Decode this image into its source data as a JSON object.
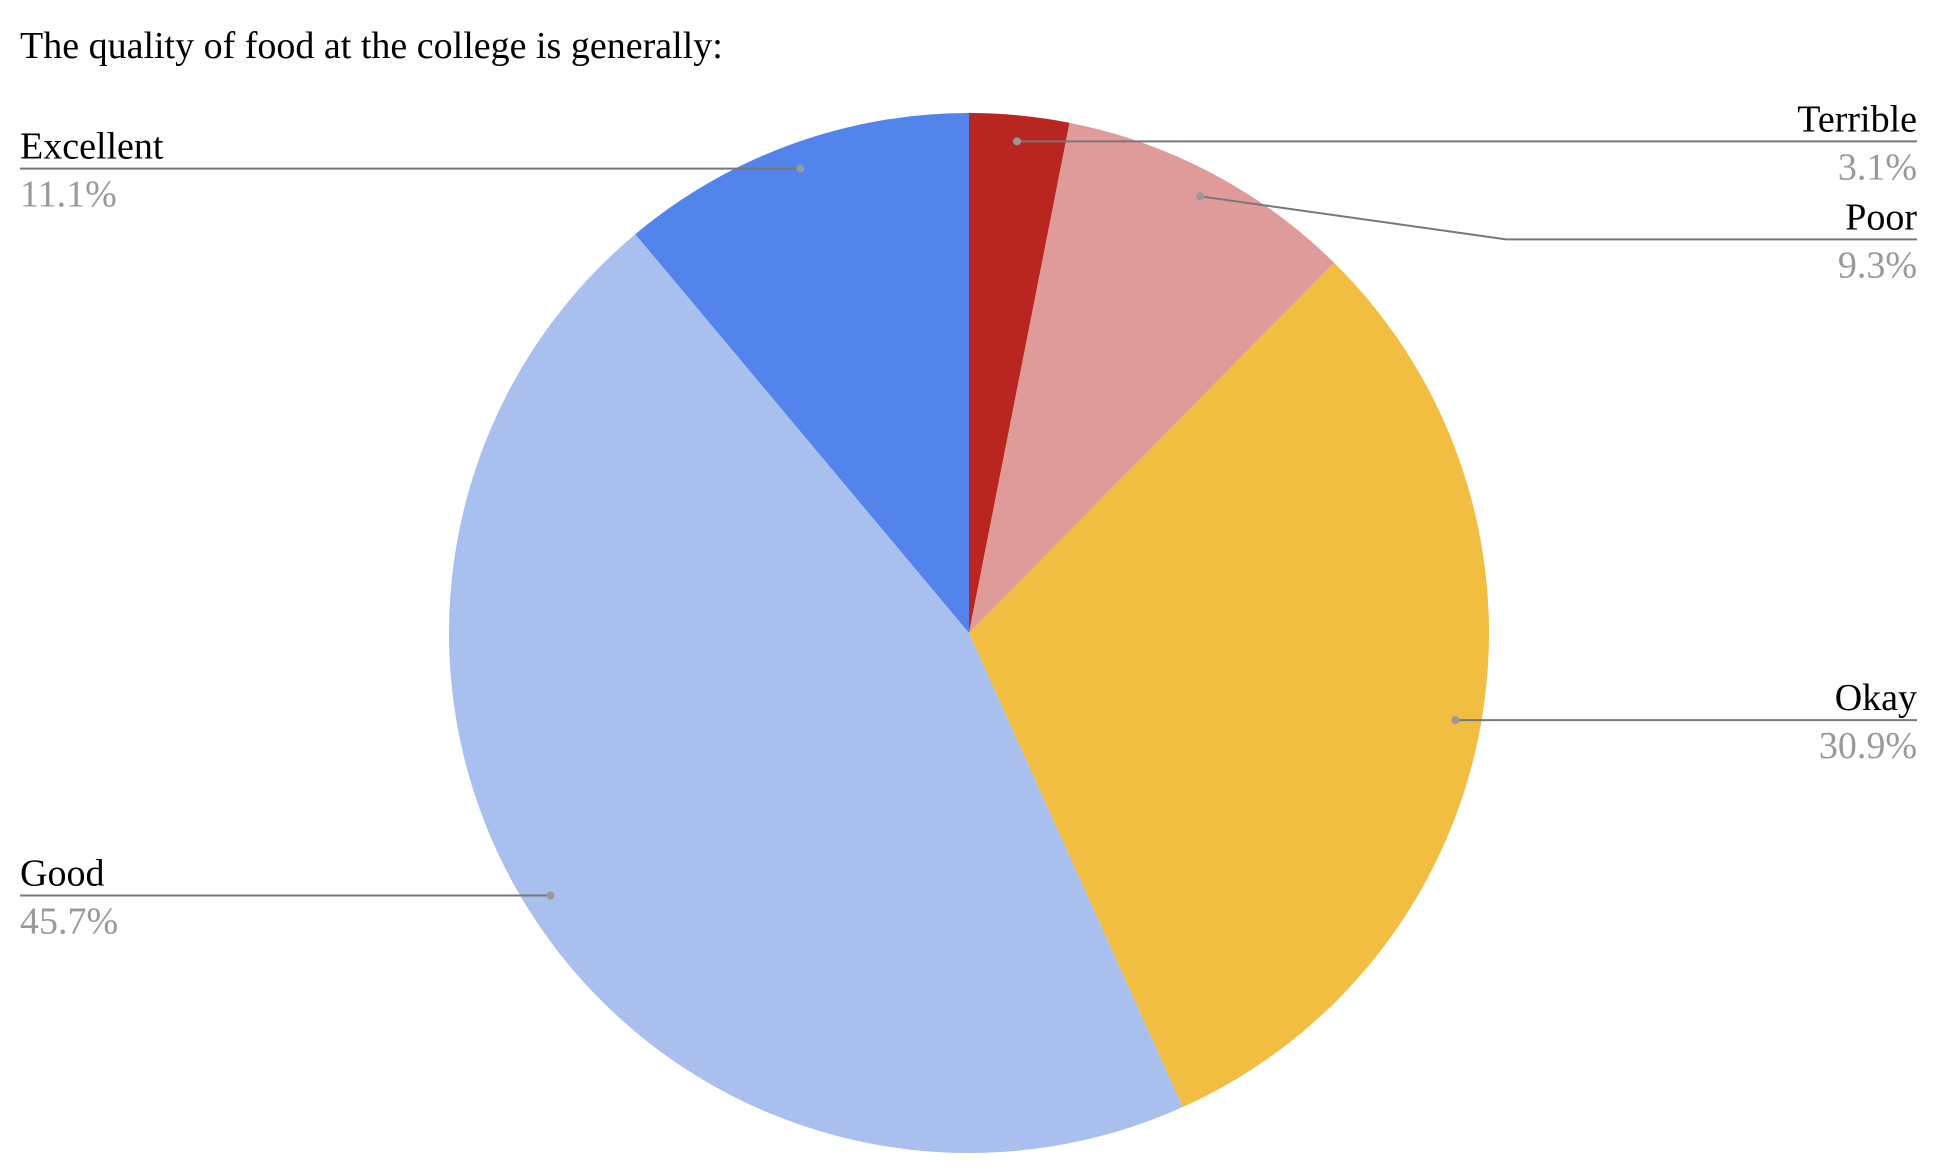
{
  "chart_data": {
    "type": "pie",
    "title": "The quality of food at the college is generally:",
    "categories": [
      "Terrible",
      "Poor",
      "Okay",
      "Good",
      "Excellent"
    ],
    "values": [
      3.1,
      9.3,
      30.9,
      45.7,
      11.1
    ],
    "value_labels": [
      "3.1%",
      "9.3%",
      "30.9%",
      "45.7%",
      "11.1%"
    ],
    "colors": [
      "#b8261f",
      "#de9b9a",
      "#f1be42",
      "#a9bfee",
      "#5384ec"
    ]
  }
}
